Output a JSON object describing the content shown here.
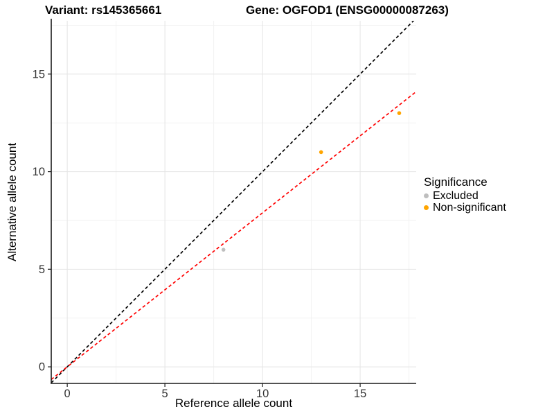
{
  "titles": {
    "variant": "Variant: rs145365661",
    "gene": "Gene: OGFOD1 (ENSG00000087263)"
  },
  "chart_data": {
    "type": "scatter",
    "xlabel": "Reference allele count",
    "ylabel": "Alternative allele count",
    "xlim": [
      -0.82,
      17.87
    ],
    "ylim": [
      -0.85,
      17.73
    ],
    "x_ticks": [
      0,
      5,
      10,
      15
    ],
    "y_ticks": [
      0,
      5,
      10,
      15
    ],
    "x_minor_ticks": [
      2.5,
      7.5,
      12.5,
      17.5
    ],
    "y_minor_ticks": [
      2.5,
      7.5,
      12.5,
      17.5
    ],
    "grid": {
      "major_color": "#e4e4e4",
      "minor_color": "#f2f2f2",
      "background": "#ffffff"
    },
    "axis": {
      "line_color": "#1a1a1a",
      "tick_color": "#1a1a1a",
      "tick_label_color": "#333333"
    },
    "series": [
      {
        "name": "Excluded",
        "color": "#bebebe",
        "points": [
          [
            8,
            6
          ]
        ]
      },
      {
        "name": "Non-significant",
        "color": "#ffa500",
        "points": [
          [
            13,
            11
          ],
          [
            17,
            13
          ]
        ]
      }
    ],
    "lines": [
      {
        "name": "identity",
        "slope": 1,
        "intercept": 0,
        "color": "#000000",
        "style": "dashed"
      },
      {
        "name": "fit",
        "slope": 0.789,
        "intercept": 0,
        "color": "#ff0000",
        "style": "dashed"
      }
    ],
    "legend": {
      "title": "Significance",
      "position": "right",
      "entries": [
        {
          "label": "Excluded",
          "color": "#bebebe"
        },
        {
          "label": "Non-significant",
          "color": "#ffa500"
        }
      ]
    }
  }
}
